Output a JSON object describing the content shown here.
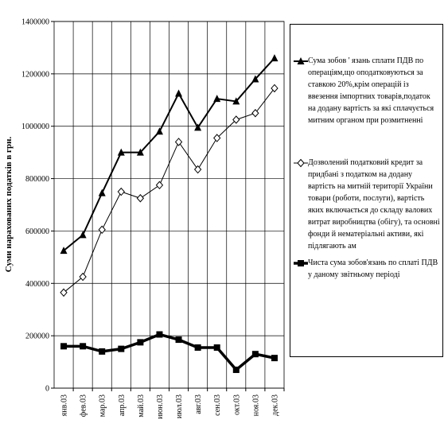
{
  "chart_data": {
    "type": "line",
    "y_label": "Суми нарахованих податків в грн.",
    "categories": [
      "янв.03",
      "фев.03",
      "мар.03",
      "апр.03",
      "май.03",
      "июн.03",
      "июл.03",
      "авг.03",
      "сен.03",
      "окт.03",
      "ноя.03",
      "дек.03"
    ],
    "series": [
      {
        "name": "Сума зобов ' язань сплати ПДВ по операціям,що оподатковуються за ставкою 20%,крім операцій із ввезення імпортних товарів,податок на додану вартість за які сплачується митним органом при розмитненні",
        "color": "#000000",
        "marker": "triangle",
        "line_width": 2,
        "values": [
          525000,
          585000,
          745000,
          900000,
          900000,
          980000,
          1125000,
          995000,
          1105000,
          1095000,
          1180000,
          1260000
        ]
      },
      {
        "name": "Дозволений податковий кредит за придбані з податком на додану вартість на митній території України товари (роботи, послуги), вартість яких включається до складу валових витрат виробництва (обігу), та основні фонди й нематеріальні активи, які підлягають ам",
        "color": "#000000",
        "marker": "diamond",
        "line_width": 1,
        "values": [
          365000,
          425000,
          605000,
          750000,
          725000,
          775000,
          940000,
          835000,
          955000,
          1025000,
          1050000,
          1145000
        ]
      },
      {
        "name": "Чиста сума зобов'язань по сплаті ПДВ у даному звітньому періоді",
        "color": "#000000",
        "marker": "square",
        "line_width": 3.5,
        "values": [
          160000,
          160000,
          140000,
          150000,
          175000,
          205000,
          185000,
          155000,
          155000,
          70000,
          130000,
          115000
        ]
      }
    ],
    "ylim": [
      0,
      1400000
    ],
    "yticks": [
      0,
      200000,
      400000,
      600000,
      800000,
      1000000,
      1200000,
      1400000
    ],
    "grid": true,
    "legend": "right"
  }
}
